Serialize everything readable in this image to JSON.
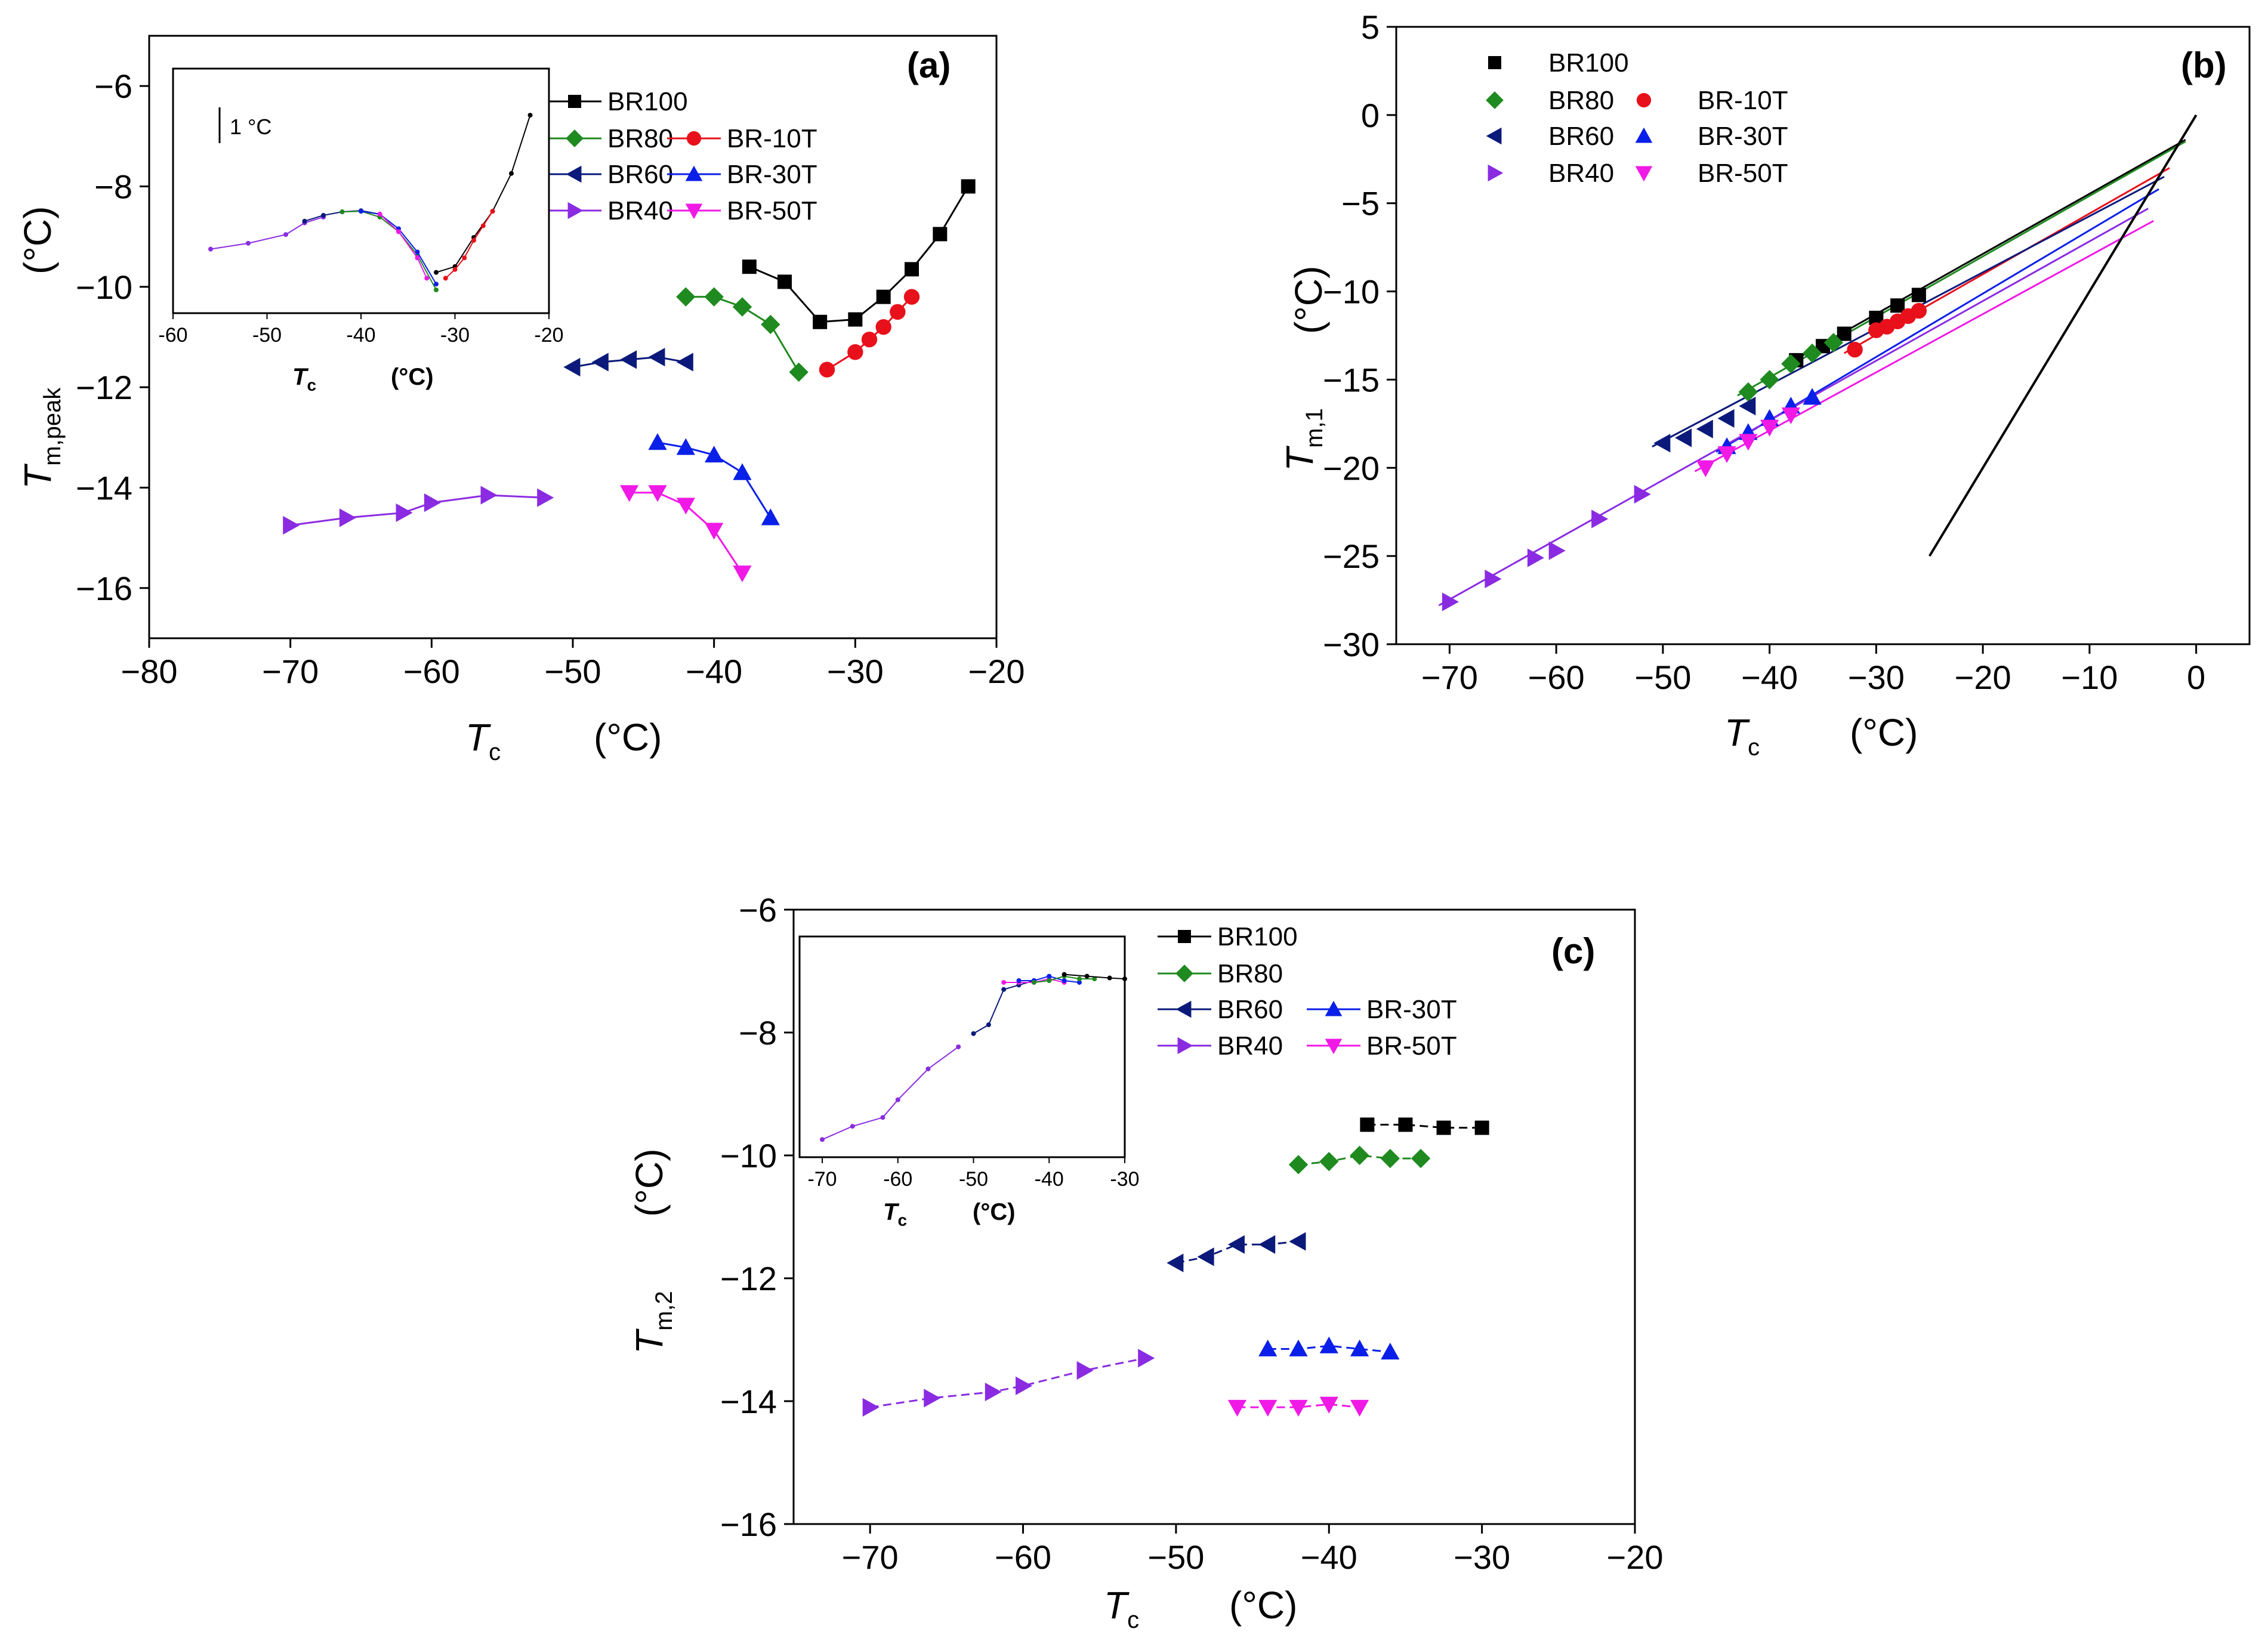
{
  "colors": {
    "BR100": "#000000",
    "BR80": "#1f8a1f",
    "BR60": "#0b1a7a",
    "BR40": "#8a2be2",
    "BR-10T": "#e8101a",
    "BR-30T": "#0a1fe8",
    "BR-50T": "#f019e6"
  },
  "chart_data": [
    {
      "id": "a",
      "type": "line",
      "panel_label": "(a)",
      "xlabel": "T",
      "xlabel_sub": "c",
      "xlabel_unit": "(°C)",
      "ylabel": "T",
      "ylabel_sub": "m,peak",
      "ylabel_unit": "(°C)",
      "xlim": [
        -80,
        -20
      ],
      "ylim": [
        -17,
        -5
      ],
      "xticks": [
        -80,
        -70,
        -60,
        -50,
        -40,
        -30,
        -20
      ],
      "yticks": [
        -16,
        -14,
        -12,
        -10,
        -8,
        -6
      ],
      "xtick_labels": [
        "−80",
        "−70",
        "−60",
        "−50",
        "−40",
        "−30",
        "−20"
      ],
      "ytick_labels": [
        "−16",
        "−14",
        "−12",
        "−10",
        "−8",
        "−6"
      ],
      "legend": [
        "BR100",
        "BR80",
        "BR-10T",
        "BR60",
        "BR-30T",
        "BR40",
        "BR-50T"
      ],
      "series": [
        {
          "name": "BR100",
          "marker": "square",
          "x": [
            -37.5,
            -35,
            -32.5,
            -30,
            -28,
            -26,
            -24,
            -22
          ],
          "y": [
            -9.6,
            -9.9,
            -10.7,
            -10.65,
            -10.2,
            -9.65,
            -8.95,
            -8.0
          ]
        },
        {
          "name": "BR80",
          "marker": "diamond",
          "x": [
            -42,
            -40,
            -38,
            -36,
            -34
          ],
          "y": [
            -10.2,
            -10.2,
            -10.4,
            -10.75,
            -11.7
          ]
        },
        {
          "name": "BR-10T",
          "marker": "circle",
          "x": [
            -32,
            -30,
            -29,
            -28,
            -27,
            -26
          ],
          "y": [
            -11.65,
            -11.3,
            -11.05,
            -10.8,
            -10.5,
            -10.2
          ]
        },
        {
          "name": "BR60",
          "marker": "triangle-left",
          "x": [
            -50,
            -48,
            -46,
            -44,
            -42
          ],
          "y": [
            -11.6,
            -11.5,
            -11.45,
            -11.4,
            -11.5
          ]
        },
        {
          "name": "BR-30T",
          "marker": "triangle-up",
          "x": [
            -44,
            -42,
            -40,
            -38,
            -36
          ],
          "y": [
            -13.1,
            -13.2,
            -13.35,
            -13.7,
            -14.6
          ]
        },
        {
          "name": "BR40",
          "marker": "triangle-right",
          "x": [
            -70,
            -66,
            -62,
            -60,
            -56,
            -52
          ],
          "y": [
            -14.75,
            -14.6,
            -14.5,
            -14.3,
            -14.15,
            -14.2
          ]
        },
        {
          "name": "BR-50T",
          "marker": "triangle-down",
          "x": [
            -46,
            -44,
            -42,
            -40,
            -38
          ],
          "y": [
            -14.1,
            -14.1,
            -14.35,
            -14.85,
            -15.7
          ]
        }
      ],
      "inset": {
        "xlim": [
          -60,
          -20
        ],
        "xticks": [
          -60,
          -50,
          -40,
          -30,
          -20
        ],
        "xtick_labels": [
          "-60",
          "-50",
          "-40",
          "-30",
          "-20"
        ],
        "xlabel": "T",
        "xlabel_sub": "c",
        "xlabel_unit": "(°C)",
        "scale_label": "1 °C",
        "series": [
          {
            "name": "BR40",
            "x": [
              -56,
              -52,
              -48,
              -46,
              -44
            ],
            "y": [
              -2.6,
              -2.5,
              -2.35,
              -2.15,
              -2.05
            ]
          },
          {
            "name": "BR60",
            "x": [
              -46,
              -44,
              -42,
              -40,
              -38
            ],
            "y": [
              -2.12,
              -2.02,
              -1.96,
              -1.94,
              -2.0
            ]
          },
          {
            "name": "BR80",
            "x": [
              -42,
              -40,
              -38,
              -36,
              -34,
              -32
            ],
            "y": [
              -1.96,
              -1.95,
              -2.05,
              -2.3,
              -2.7,
              -3.3
            ]
          },
          {
            "name": "BR-30T",
            "x": [
              -40,
              -38,
              -36,
              -34,
              -32
            ],
            "y": [
              -1.95,
              -2.0,
              -2.25,
              -2.65,
              -3.2
            ]
          },
          {
            "name": "BR-50T",
            "x": [
              -38,
              -36,
              -34,
              -33
            ],
            "y": [
              -2.0,
              -2.3,
              -2.75,
              -3.1
            ]
          },
          {
            "name": "BR100",
            "x": [
              -32,
              -30,
              -28,
              -26,
              -24,
              -22
            ],
            "y": [
              -3.0,
              -2.9,
              -2.4,
              -1.95,
              -1.3,
              -0.3
            ]
          },
          {
            "name": "BR-10T",
            "x": [
              -31,
              -30,
              -29,
              -28,
              -27,
              -26
            ],
            "y": [
              -3.1,
              -2.95,
              -2.75,
              -2.45,
              -2.2,
              -1.95
            ]
          }
        ]
      }
    },
    {
      "id": "b",
      "type": "scatter",
      "panel_label": "(b)",
      "xlabel": "T",
      "xlabel_sub": "c",
      "xlabel_unit": "(°C)",
      "ylabel": "T",
      "ylabel_sub": "m,1",
      "ylabel_unit": "(°C)",
      "xlim": [
        -75,
        5
      ],
      "ylim": [
        -30,
        5
      ],
      "xticks": [
        -70,
        -60,
        -50,
        -40,
        -30,
        -20,
        -10,
        0
      ],
      "yticks": [
        -30,
        -25,
        -20,
        -15,
        -10,
        -5,
        0,
        5
      ],
      "xtick_labels": [
        "−70",
        "−60",
        "−50",
        "−40",
        "−30",
        "−20",
        "−10",
        "0"
      ],
      "ytick_labels": [
        "−30",
        "−25",
        "−20",
        "−15",
        "−10",
        "−5",
        "0",
        "5"
      ],
      "legend": [
        "BR100",
        "BR80",
        "BR-10T",
        "BR60",
        "BR-30T",
        "BR40",
        "BR-50T"
      ],
      "series": [
        {
          "name": "BR100",
          "marker": "square",
          "x": [
            -37.5,
            -35,
            -33,
            -30,
            -28,
            -26
          ],
          "y": [
            -13.9,
            -13.1,
            -12.4,
            -11.5,
            -10.8,
            -10.2
          ]
        },
        {
          "name": "BR80",
          "marker": "diamond",
          "x": [
            -42,
            -40,
            -38,
            -36,
            -34
          ],
          "y": [
            -15.7,
            -15.0,
            -14.1,
            -13.5,
            -12.9
          ]
        },
        {
          "name": "BR-10T",
          "marker": "circle",
          "x": [
            -32,
            -30,
            -29,
            -28,
            -27,
            -26
          ],
          "y": [
            -13.3,
            -12.2,
            -12.0,
            -11.7,
            -11.4,
            -11.1
          ]
        },
        {
          "name": "BR60",
          "marker": "triangle-left",
          "x": [
            -50,
            -48,
            -46,
            -44,
            -42
          ],
          "y": [
            -18.6,
            -18.3,
            -17.8,
            -17.2,
            -16.5
          ]
        },
        {
          "name": "BR-30T",
          "marker": "triangle-up",
          "x": [
            -44,
            -42,
            -40,
            -38,
            -36
          ],
          "y": [
            -18.8,
            -18.0,
            -17.2,
            -16.5,
            -16.0
          ]
        },
        {
          "name": "BR40",
          "marker": "triangle-right",
          "x": [
            -70,
            -66,
            -62,
            -60,
            -56,
            -52
          ],
          "y": [
            -27.6,
            -26.3,
            -25.1,
            -24.7,
            -22.9,
            -21.5
          ]
        },
        {
          "name": "BR-50T",
          "marker": "triangle-down",
          "x": [
            -46,
            -44,
            -42,
            -40,
            -38
          ],
          "y": [
            -20.0,
            -19.2,
            -18.5,
            -17.7,
            -17.0
          ]
        }
      ],
      "fit_lines": [
        {
          "name": "BR100",
          "x": [
            -38,
            -1.0
          ],
          "y": [
            -14.0,
            -1.4
          ]
        },
        {
          "name": "BR80",
          "x": [
            -43,
            -1.0
          ],
          "y": [
            -15.9,
            -1.5
          ]
        },
        {
          "name": "BR-10T",
          "x": [
            -33,
            -2.5
          ],
          "y": [
            -13.5,
            -3.0
          ]
        },
        {
          "name": "BR60",
          "x": [
            -51,
            -3.0
          ],
          "y": [
            -18.8,
            -3.5
          ]
        },
        {
          "name": "BR-30T",
          "x": [
            -45,
            -3.5
          ],
          "y": [
            -19.1,
            -4.2
          ]
        },
        {
          "name": "BR40",
          "x": [
            -71,
            -4.5
          ],
          "y": [
            -27.8,
            -5.3
          ]
        },
        {
          "name": "BR-50T",
          "x": [
            -47,
            -4.0
          ],
          "y": [
            -20.2,
            -6.0
          ]
        }
      ],
      "reference_line": {
        "x": [
          -25,
          0
        ],
        "y": [
          -25,
          0
        ]
      }
    },
    {
      "id": "c",
      "type": "line",
      "panel_label": "(c)",
      "xlabel": "T",
      "xlabel_sub": "c",
      "xlabel_unit": "(°C)",
      "ylabel": "T",
      "ylabel_sub": "m,2",
      "ylabel_unit": "(°C)",
      "xlim": [
        -75,
        -20
      ],
      "ylim": [
        -16,
        -6
      ],
      "xticks": [
        -70,
        -60,
        -50,
        -40,
        -30,
        -20
      ],
      "yticks": [
        -16,
        -14,
        -12,
        -10,
        -8,
        -6
      ],
      "xtick_labels": [
        "−70",
        "−60",
        "−50",
        "−40",
        "−30",
        "−20"
      ],
      "ytick_labels": [
        "−16",
        "−14",
        "−12",
        "−10",
        "−8",
        "−6"
      ],
      "legend": [
        "BR100",
        "BR80",
        "BR60",
        "BR-30T",
        "BR40",
        "BR-50T"
      ],
      "series": [
        {
          "name": "BR100",
          "marker": "square",
          "x": [
            -37.5,
            -35,
            -32.5,
            -30
          ],
          "y": [
            -9.5,
            -9.5,
            -9.55,
            -9.55
          ]
        },
        {
          "name": "BR80",
          "marker": "diamond",
          "x": [
            -42,
            -40,
            -38,
            -36,
            -34
          ],
          "y": [
            -10.15,
            -10.1,
            -10.0,
            -10.05,
            -10.05
          ]
        },
        {
          "name": "BR60",
          "marker": "triangle-left",
          "x": [
            -50,
            -48,
            -46,
            -44,
            -42
          ],
          "y": [
            -11.75,
            -11.65,
            -11.45,
            -11.45,
            -11.4
          ]
        },
        {
          "name": "BR-30T",
          "marker": "triangle-up",
          "x": [
            -44,
            -42,
            -40,
            -38,
            -36
          ],
          "y": [
            -13.15,
            -13.15,
            -13.1,
            -13.15,
            -13.2
          ]
        },
        {
          "name": "BR40",
          "marker": "triangle-right",
          "x": [
            -70,
            -66,
            -62,
            -60,
            -56,
            -52
          ],
          "y": [
            -14.1,
            -13.95,
            -13.85,
            -13.75,
            -13.5,
            -13.3
          ]
        },
        {
          "name": "BR-50T",
          "marker": "triangle-down",
          "x": [
            -46,
            -44,
            -42,
            -40,
            -38
          ],
          "y": [
            -14.1,
            -14.1,
            -14.1,
            -14.05,
            -14.1
          ]
        }
      ],
      "inset": {
        "xlim": [
          -73,
          -30
        ],
        "xticks": [
          -70,
          -60,
          -50,
          -40,
          -30
        ],
        "xtick_labels": [
          "-70",
          "-60",
          "-50",
          "-40",
          "-30"
        ],
        "xlabel": "T",
        "xlabel_sub": "c",
        "xlabel_unit": "(°C)",
        "series": [
          {
            "name": "BR40",
            "x": [
              -70,
              -66,
              -62,
              -60,
              -56,
              -52
            ],
            "y": [
              -2.2,
              -2.05,
              -1.95,
              -1.75,
              -1.4,
              -1.15
            ]
          },
          {
            "name": "BR60",
            "x": [
              -50,
              -48,
              -46,
              -44,
              -42
            ],
            "y": [
              -1.0,
              -0.9,
              -0.5,
              -0.45,
              -0.4
            ]
          },
          {
            "name": "BR-50T",
            "x": [
              -46,
              -44,
              -42,
              -40,
              -38
            ],
            "y": [
              -0.42,
              -0.42,
              -0.42,
              -0.38,
              -0.42
            ]
          },
          {
            "name": "BR-30T",
            "x": [
              -44,
              -42,
              -40,
              -38,
              -36
            ],
            "y": [
              -0.4,
              -0.4,
              -0.35,
              -0.4,
              -0.42
            ]
          },
          {
            "name": "BR80",
            "x": [
              -42,
              -40,
              -38,
              -36,
              -34
            ],
            "y": [
              -0.42,
              -0.4,
              -0.35,
              -0.38,
              -0.38
            ]
          },
          {
            "name": "BR100",
            "x": [
              -38,
              -35,
              -32,
              -30
            ],
            "y": [
              -0.33,
              -0.35,
              -0.37,
              -0.38
            ]
          }
        ]
      }
    }
  ]
}
